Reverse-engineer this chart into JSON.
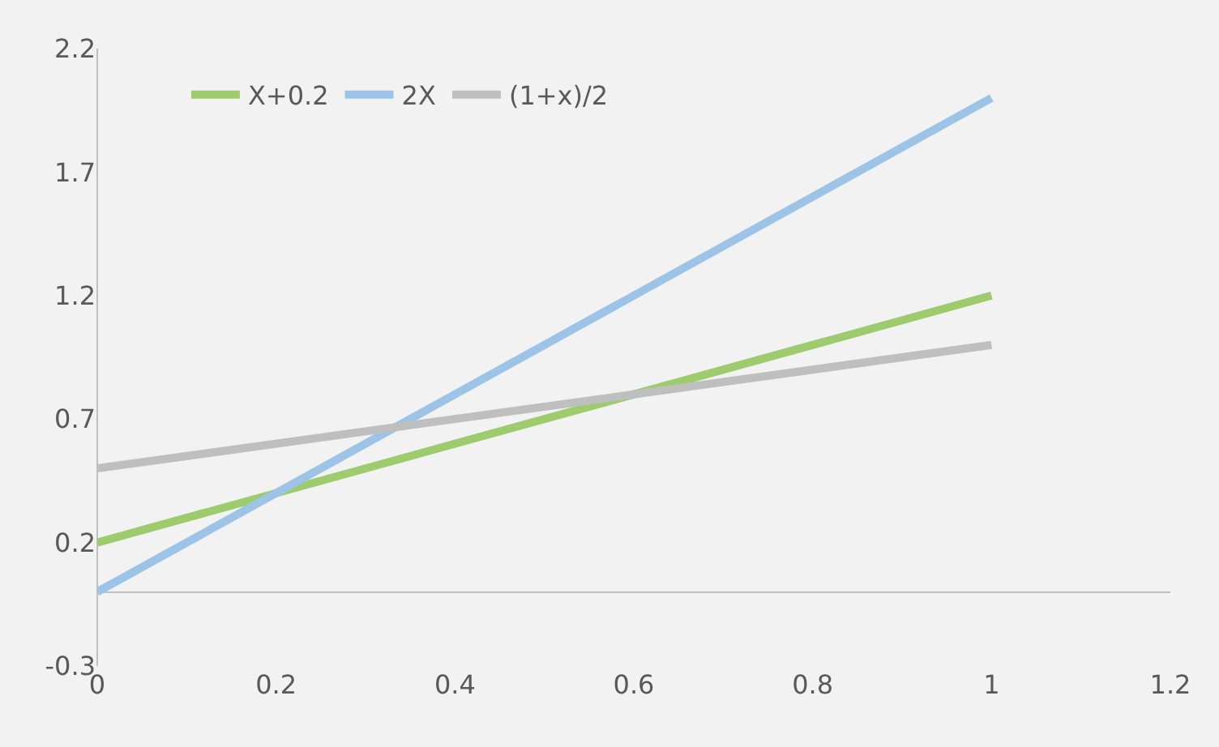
{
  "chart_data": {
    "type": "line",
    "x": [
      0,
      1
    ],
    "series": [
      {
        "name": "X+0.2",
        "color": "#9dcb6e",
        "values": [
          0.2,
          1.2
        ]
      },
      {
        "name": "2X",
        "color": "#9dc3e6",
        "values": [
          0,
          2
        ]
      },
      {
        "name": "(1+x)/2",
        "color": "#bfbfbf",
        "values": [
          0.5,
          1
        ]
      }
    ],
    "xlim": [
      0,
      1.2
    ],
    "xticks": [
      0,
      0.2,
      0.4,
      0.6,
      0.8,
      1,
      1.2
    ],
    "ylim": [
      -0.3,
      2.2
    ],
    "yticks": [
      -0.3,
      0.2,
      0.7,
      1.2,
      1.7,
      2.2
    ],
    "grid": false,
    "legend": "top left",
    "marker": "none",
    "line_style": "solid"
  }
}
